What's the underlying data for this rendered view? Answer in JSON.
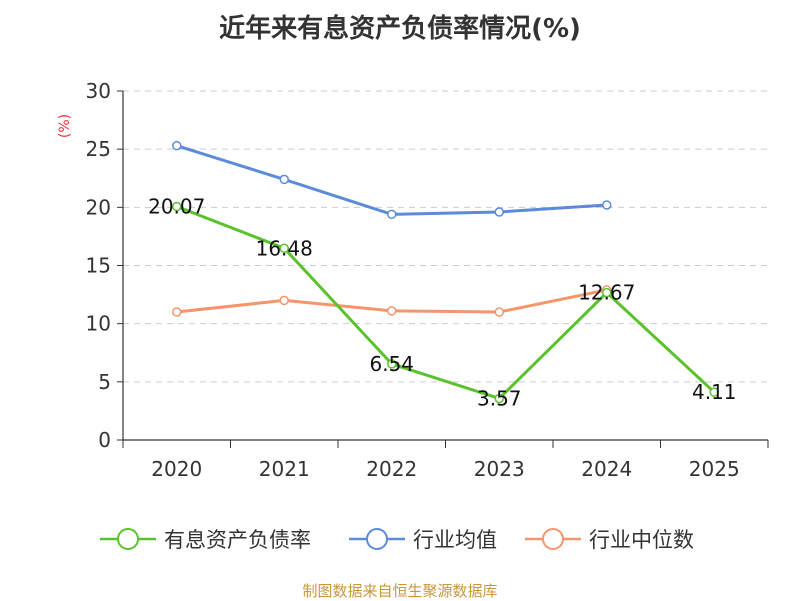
{
  "title": "近年来有息资产负债率情况(%)",
  "source_note": "制图数据来自恒生聚源数据库",
  "chart_data": {
    "type": "line",
    "ylabel": "(%)",
    "ylim": [
      0,
      30
    ],
    "yticks": [
      0,
      5,
      10,
      15,
      20,
      25,
      30
    ],
    "grid": true,
    "legend_position": "bottom",
    "categories": [
      "2020",
      "2021",
      "2022",
      "2023",
      "2024",
      "2025"
    ],
    "series": [
      {
        "name": "有息资产负债率",
        "color": "#5ac22c",
        "values": [
          20.07,
          16.48,
          6.54,
          3.57,
          12.67,
          4.11
        ],
        "labels": [
          "20.07",
          "16.48",
          "6.54",
          "3.57",
          "12.67",
          "4.11"
        ]
      },
      {
        "name": "行业均值",
        "color": "#5b8bd9",
        "values": [
          25.3,
          22.4,
          19.4,
          19.6,
          20.2,
          null
        ]
      },
      {
        "name": "行业中位数",
        "color": "#f4956b",
        "values": [
          11.0,
          12.0,
          11.1,
          11.0,
          12.9,
          null
        ]
      }
    ]
  }
}
